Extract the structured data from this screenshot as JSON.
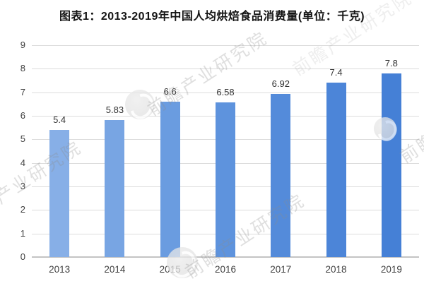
{
  "title": "图表1：2013-2019年中国人均烘焙食品消费量(单位：千克)",
  "watermark": {
    "text": "前瞻产业研究院"
  },
  "chart_data": {
    "type": "bar",
    "title": "图表1：2013-2019年中国人均烘焙食品消费量(单位：千克)",
    "unit_label": "千克",
    "categories": [
      "2013",
      "2014",
      "2015",
      "2016",
      "2017",
      "2018",
      "2019"
    ],
    "values": [
      5.4,
      5.83,
      6.6,
      6.58,
      6.92,
      7.4,
      7.8
    ],
    "value_labels": [
      "5.4",
      "5.83",
      "6.6",
      "6.58",
      "6.92",
      "7.4",
      "7.8"
    ],
    "xlabel": "",
    "ylabel": "",
    "ylim": [
      0,
      9
    ],
    "yticks": [
      0,
      1,
      2,
      3,
      4,
      5,
      6,
      7,
      8,
      9
    ],
    "grid": true,
    "legend": "none",
    "bar_colors": [
      "#87AFE7",
      "#78A5E3",
      "#6A9CE0",
      "#5E93DD",
      "#548BDA",
      "#4C85D8",
      "#4580D6"
    ],
    "gridline_color": "#DCDCDC",
    "baseline_color": "#C4C4C4",
    "axis_label_color": "#404040",
    "data_label_color": "#333333",
    "title_color": "#141414",
    "watermark_color": "#8C8C8C"
  }
}
